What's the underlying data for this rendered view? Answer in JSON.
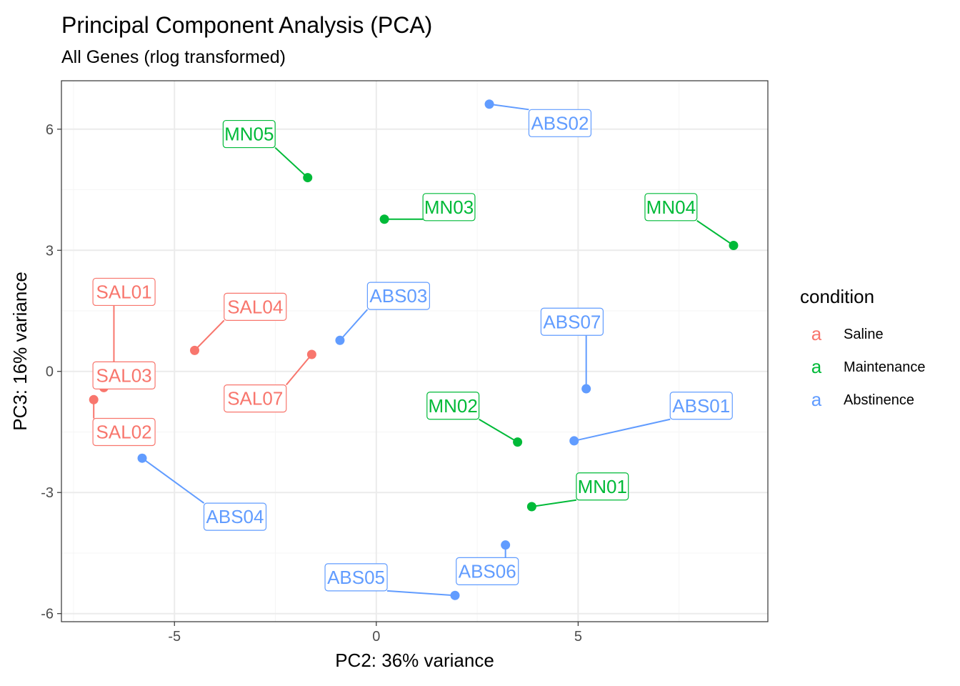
{
  "colors": {
    "saline": "#F8766D",
    "maintenance": "#00BA38",
    "abstinence": "#619CFF",
    "grid_major": "#EBEBEB",
    "grid_minor": "#F5F5F5",
    "panel_border": "#333333",
    "tick_text": "#4D4D4D"
  },
  "chart_data": {
    "type": "scatter",
    "title": "Principal Component Analysis (PCA)",
    "subtitle": "All Genes (rlog transformed)",
    "xlabel": "PC2: 36% variance",
    "ylabel": "PC3: 16% variance",
    "xlim": [
      -7.8,
      9.7
    ],
    "ylim": [
      -6.2,
      7.2
    ],
    "x_ticks": [
      -5,
      0,
      5
    ],
    "y_ticks": [
      -6,
      -3,
      0,
      3,
      6
    ],
    "x_tick_labels": [
      "-5",
      "0",
      "5"
    ],
    "y_tick_labels": [
      "-6",
      "-3",
      "0",
      "3",
      "6"
    ],
    "grid": true,
    "legend": {
      "title": "condition",
      "placement": "right",
      "key_glyph": "a",
      "entries": [
        "Saline",
        "Maintenance",
        "Abstinence"
      ]
    },
    "series": [
      {
        "name": "Saline",
        "points": [
          {
            "label": "SAL01",
            "x": -6.5,
            "y": -0.25,
            "lx": -6.25,
            "ly": 1.97
          },
          {
            "label": "SAL02",
            "x": -7.0,
            "y": -0.7,
            "lx": -6.25,
            "ly": -1.5
          },
          {
            "label": "SAL03",
            "x": -6.75,
            "y": -0.4,
            "lx": -6.25,
            "ly": -0.1
          },
          {
            "label": "SAL04",
            "x": -4.5,
            "y": 0.52,
            "lx": -3.0,
            "ly": 1.6
          },
          {
            "label": "SAL07",
            "x": -1.6,
            "y": 0.42,
            "lx": -3.0,
            "ly": -0.67
          }
        ]
      },
      {
        "name": "Maintenance",
        "points": [
          {
            "label": "MN01",
            "x": 3.85,
            "y": -3.35,
            "lx": 5.6,
            "ly": -2.85
          },
          {
            "label": "MN02",
            "x": 3.5,
            "y": -1.75,
            "lx": 1.9,
            "ly": -0.85
          },
          {
            "label": "MN03",
            "x": 0.2,
            "y": 3.77,
            "lx": 1.8,
            "ly": 4.07
          },
          {
            "label": "MN04",
            "x": 8.85,
            "y": 3.12,
            "lx": 7.3,
            "ly": 4.07
          },
          {
            "label": "MN05",
            "x": -1.7,
            "y": 4.8,
            "lx": -3.15,
            "ly": 5.88
          }
        ]
      },
      {
        "name": "Abstinence",
        "points": [
          {
            "label": "ABS01",
            "x": 4.9,
            "y": -1.72,
            "lx": 8.05,
            "ly": -0.85
          },
          {
            "label": "ABS02",
            "x": 2.8,
            "y": 6.62,
            "lx": 4.55,
            "ly": 6.15
          },
          {
            "label": "ABS03",
            "x": -0.9,
            "y": 0.77,
            "lx": 0.55,
            "ly": 1.87
          },
          {
            "label": "ABS04",
            "x": -5.8,
            "y": -2.15,
            "lx": -3.5,
            "ly": -3.6
          },
          {
            "label": "ABS05",
            "x": 1.95,
            "y": -5.55,
            "lx": -0.5,
            "ly": -5.1
          },
          {
            "label": "ABS06",
            "x": 3.2,
            "y": -4.3,
            "lx": 2.75,
            "ly": -4.95
          },
          {
            "label": "ABS07",
            "x": 5.2,
            "y": -0.43,
            "lx": 4.85,
            "ly": 1.23
          }
        ]
      }
    ]
  }
}
